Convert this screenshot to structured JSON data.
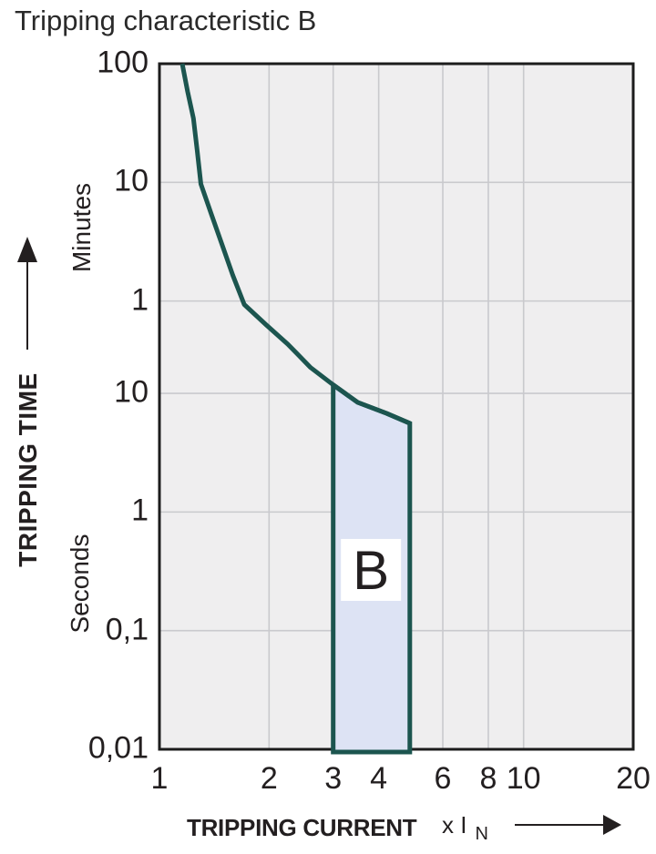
{
  "title": "Tripping characteristic B",
  "colors": {
    "curve": "#1C554F",
    "band_fill": "#DDE3F4",
    "plot_bg": "#EFEEEF",
    "grid": "#C9C9CD",
    "border": "#1C1C1C",
    "text": "#231F20",
    "label_box": "#FFFFFF"
  },
  "y_axis": {
    "label": "TRIPPING TIME",
    "unit_upper": "Minutes",
    "unit_lower": "Seconds"
  },
  "x_axis": {
    "label": "TRIPPING CURRENT",
    "multiplier": "x I",
    "multiplier_sub": "N"
  },
  "chart_data": {
    "type": "line",
    "title": "Tripping characteristic B",
    "xlabel": "TRIPPING CURRENT x IN",
    "ylabel": "TRIPPING TIME",
    "x_scale": "log",
    "y_scale": "log",
    "x_range": [
      1,
      20
    ],
    "y_range_seconds": [
      0.01,
      6000
    ],
    "x_ticks": [
      {
        "label": "1",
        "value": 1
      },
      {
        "label": "2",
        "value": 2
      },
      {
        "label": "3",
        "value": 3
      },
      {
        "label": "4",
        "value": 4
      },
      {
        "label": "6",
        "value": 6
      },
      {
        "label": "8",
        "value": 8
      },
      {
        "label": "10",
        "value": 10
      },
      {
        "label": "20",
        "value": 20
      }
    ],
    "y_ticks": [
      {
        "label": "100",
        "unit": "min",
        "seconds": 6000
      },
      {
        "label": "10",
        "unit": "min",
        "seconds": 600
      },
      {
        "label": "1",
        "unit": "min",
        "seconds": 60
      },
      {
        "label": "10",
        "unit": "s",
        "seconds": 10
      },
      {
        "label": "1",
        "unit": "s",
        "seconds": 1
      },
      {
        "label": "0,1",
        "unit": "s",
        "seconds": 0.1
      },
      {
        "label": "0,01",
        "unit": "s",
        "seconds": 0.01
      }
    ],
    "grid": {
      "x_values": [
        2,
        3,
        4,
        6,
        8,
        10
      ],
      "y_seconds": [
        600,
        60,
        10,
        1,
        0.1
      ]
    },
    "series": [
      {
        "name": "tripping-limit-curve",
        "x_as": "multiple_of_In",
        "y_as": "seconds",
        "points": [
          [
            1.155,
            6000
          ],
          [
            1.195,
            3500
          ],
          [
            1.24,
            2080
          ],
          [
            1.27,
            1100
          ],
          [
            1.3,
            580
          ],
          [
            1.39,
            320
          ],
          [
            1.49,
            175
          ],
          [
            1.59,
            99
          ],
          [
            1.71,
            56
          ],
          [
            1.96,
            38
          ],
          [
            2.25,
            26
          ],
          [
            2.41,
            21
          ],
          [
            2.6,
            16.5
          ],
          [
            3.0,
            11.8
          ],
          [
            3.5,
            8.4
          ],
          [
            4.2,
            6.8
          ],
          [
            4.87,
            5.6
          ]
        ]
      }
    ],
    "band": {
      "label": "B",
      "x_from": 3,
      "x_to": 4.87,
      "top_points": [
        [
          3.0,
          11.8
        ],
        [
          3.5,
          8.4
        ],
        [
          4.2,
          6.8
        ],
        [
          4.87,
          5.6
        ]
      ],
      "bottom_seconds": 0.01,
      "label_pos": [
        3.81,
        0.325
      ]
    }
  }
}
